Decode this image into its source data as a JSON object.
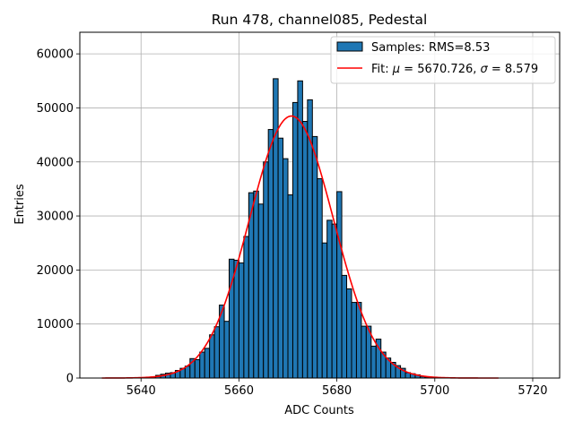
{
  "chart_data": {
    "type": "bar",
    "title": "Run 478, channel085, Pedestal",
    "xlabel": "ADC Counts",
    "ylabel": "Entries",
    "xlim": [
      5627.5,
      5725.5
    ],
    "ylim": [
      0,
      64000
    ],
    "x_ticks": [
      5640,
      5660,
      5680,
      5700,
      5720
    ],
    "y_ticks": [
      0,
      10000,
      20000,
      30000,
      40000,
      50000,
      60000
    ],
    "grid": true,
    "legend_position": "top-right",
    "legend": {
      "histogram_label": "Samples: RMS=8.53",
      "fit_label_prefix": "Fit: ",
      "fit_mu_symbol": "μ",
      "fit_mu_value": " = 5670.726, ",
      "fit_sigma_symbol": "σ",
      "fit_sigma_value": " = 8.579"
    },
    "colors": {
      "bar_fill": "#1f77b4",
      "bar_edge": "#000000",
      "fit_line": "#ff0000",
      "grid": "#b0b0b0"
    },
    "histogram": {
      "bin_start": 5632,
      "bin_width": 1,
      "values": [
        0,
        0,
        0,
        0,
        0,
        0,
        0,
        0,
        0,
        0,
        200,
        500,
        700,
        900,
        1000,
        1400,
        1800,
        2200,
        3600,
        3400,
        4800,
        5500,
        8000,
        9500,
        13500,
        10500,
        22000,
        21800,
        21300,
        26200,
        34300,
        34600,
        32200,
        40000,
        46000,
        55400,
        44400,
        40600,
        33900,
        51000,
        55000,
        47500,
        51500,
        44700,
        36900,
        25000,
        29200,
        28500,
        34500,
        19000,
        16500,
        14000,
        14000,
        9600,
        9600,
        5900,
        7200,
        4800,
        3700,
        2900,
        2300,
        1800,
        1000,
        800,
        600,
        300,
        200,
        100,
        0,
        0,
        0,
        0,
        0,
        0,
        0,
        0,
        0,
        0,
        0,
        0,
        0
      ]
    },
    "fit": {
      "function": "gaussian",
      "mu": 5670.726,
      "sigma": 8.579,
      "amplitude": 48500,
      "x_range": [
        5632,
        5713
      ]
    }
  }
}
